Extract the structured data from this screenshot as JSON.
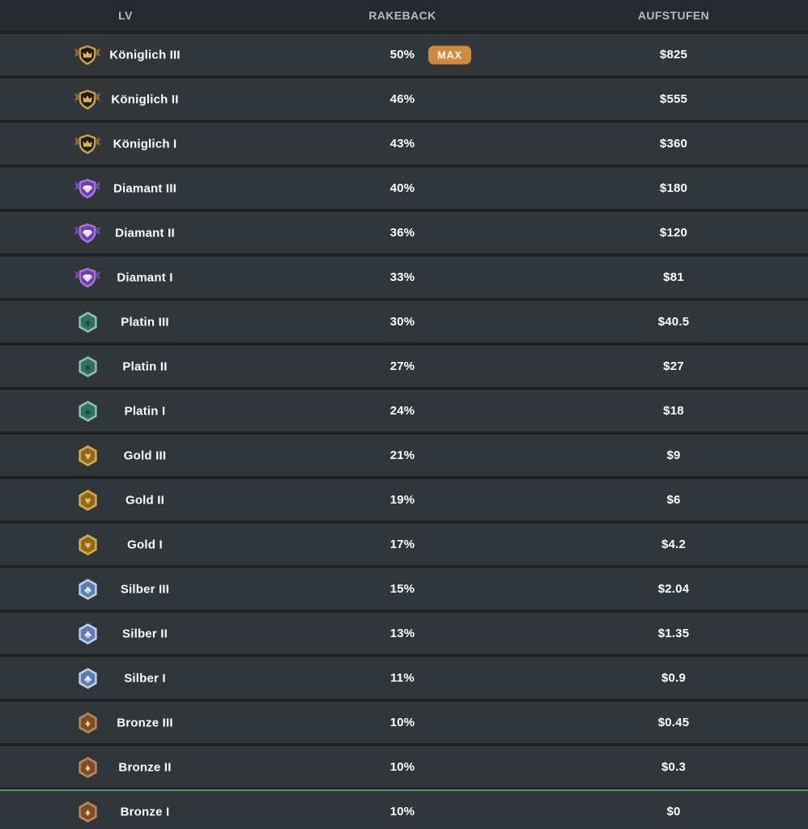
{
  "colors": {
    "header_bg": "#26292d",
    "row_bg": "#30363a",
    "page_bg": "#1e2124",
    "header_text": "#b5bcc3",
    "row_text": "#ffffff",
    "max_badge_bg": "#d0893f",
    "active_row_border": "#57906f"
  },
  "table": {
    "headers": [
      {
        "key": "lv",
        "label": "LV"
      },
      {
        "key": "rakeback",
        "label": "RAKEBACK"
      },
      {
        "key": "aufstufen",
        "label": "AUFSTUFEN"
      }
    ],
    "max_label": "MAX",
    "rows": [
      {
        "level": "Königlich III",
        "tier": "royal",
        "rakeback": "50%",
        "max": true,
        "aufstufen": "$825",
        "active": false
      },
      {
        "level": "Königlich II",
        "tier": "royal",
        "rakeback": "46%",
        "max": false,
        "aufstufen": "$555",
        "active": false
      },
      {
        "level": "Königlich I",
        "tier": "royal",
        "rakeback": "43%",
        "max": false,
        "aufstufen": "$360",
        "active": false
      },
      {
        "level": "Diamant III",
        "tier": "diamond",
        "rakeback": "40%",
        "max": false,
        "aufstufen": "$180",
        "active": false
      },
      {
        "level": "Diamant II",
        "tier": "diamond",
        "rakeback": "36%",
        "max": false,
        "aufstufen": "$120",
        "active": false
      },
      {
        "level": "Diamant I",
        "tier": "diamond",
        "rakeback": "33%",
        "max": false,
        "aufstufen": "$81",
        "active": false
      },
      {
        "level": "Platin III",
        "tier": "platinum",
        "rakeback": "30%",
        "max": false,
        "aufstufen": "$40.5",
        "active": false
      },
      {
        "level": "Platin II",
        "tier": "platinum",
        "rakeback": "27%",
        "max": false,
        "aufstufen": "$27",
        "active": false
      },
      {
        "level": "Platin I",
        "tier": "platinum",
        "rakeback": "24%",
        "max": false,
        "aufstufen": "$18",
        "active": false
      },
      {
        "level": "Gold III",
        "tier": "gold",
        "rakeback": "21%",
        "max": false,
        "aufstufen": "$9",
        "active": false
      },
      {
        "level": "Gold II",
        "tier": "gold",
        "rakeback": "19%",
        "max": false,
        "aufstufen": "$6",
        "active": false
      },
      {
        "level": "Gold I",
        "tier": "gold",
        "rakeback": "17%",
        "max": false,
        "aufstufen": "$4.2",
        "active": false
      },
      {
        "level": "Silber III",
        "tier": "silver",
        "rakeback": "15%",
        "max": false,
        "aufstufen": "$2.04",
        "active": false
      },
      {
        "level": "Silber II",
        "tier": "silver",
        "rakeback": "13%",
        "max": false,
        "aufstufen": "$1.35",
        "active": false
      },
      {
        "level": "Silber I",
        "tier": "silver",
        "rakeback": "11%",
        "max": false,
        "aufstufen": "$0.9",
        "active": false
      },
      {
        "level": "Bronze III",
        "tier": "bronze",
        "rakeback": "10%",
        "max": false,
        "aufstufen": "$0.45",
        "active": false
      },
      {
        "level": "Bronze II",
        "tier": "bronze",
        "rakeback": "10%",
        "max": false,
        "aufstufen": "$0.3",
        "active": false
      },
      {
        "level": "Bronze I",
        "tier": "bronze",
        "rakeback": "10%",
        "max": false,
        "aufstufen": "$0",
        "active": true
      }
    ]
  },
  "tiers": {
    "royal": {
      "icon": "royal-crown-badge-icon",
      "shape": "shield",
      "wing": "#8a6a30",
      "border": "#c9a254",
      "fill": "#241c11",
      "glyph": "crown",
      "glyph_color": "#d9b35c"
    },
    "diamond": {
      "icon": "diamond-shield-badge-icon",
      "shape": "shield",
      "wing": "#7448a3",
      "border": "#a679d8",
      "fill": "#6c3fae",
      "glyph": "gem",
      "glyph_color": "#e8ddf7"
    },
    "platinum": {
      "icon": "platinum-spade-badge-icon",
      "shape": "hex",
      "wing": "",
      "border": "#8cc2ae",
      "fill": "#34705f",
      "glyph": "spade",
      "glyph_color": "#1d4a3d"
    },
    "gold": {
      "icon": "gold-heart-badge-icon",
      "shape": "hex",
      "wing": "",
      "border": "#d9ab4e",
      "fill": "#8f6a1a",
      "glyph": "heart",
      "glyph_color": "#e7c167"
    },
    "silver": {
      "icon": "silver-club-badge-icon",
      "shape": "hex",
      "wing": "",
      "border": "#c3d0e3",
      "fill": "#5c7db4",
      "glyph": "club",
      "glyph_color": "#e9eef7"
    },
    "bronze": {
      "icon": "bronze-diamond-badge-icon",
      "shape": "hex",
      "wing": "",
      "border": "#bd8a57",
      "fill": "#7c4e28",
      "glyph": "diamond",
      "glyph_color": "#eec593"
    }
  }
}
